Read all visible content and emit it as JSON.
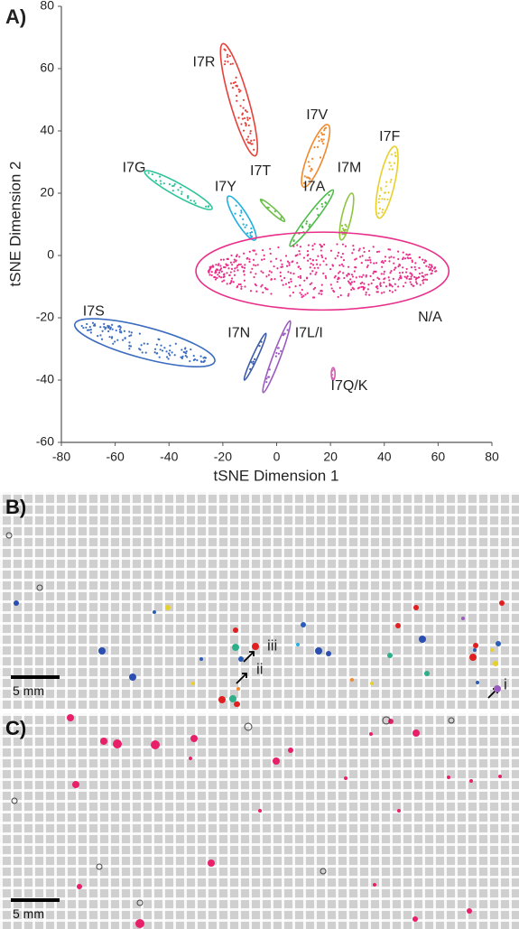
{
  "panel_a": {
    "label": "A)"
  },
  "chart_data": {
    "type": "scatter",
    "x_label": "tSNE Dimension 1",
    "y_label": "tSNE Dimension 2",
    "xlim": [
      -80,
      80
    ],
    "ylim": [
      -60,
      80
    ],
    "xticks": [
      -80,
      -60,
      -40,
      -20,
      0,
      20,
      40,
      60,
      80
    ],
    "yticks": [
      -60,
      -40,
      -20,
      0,
      20,
      40,
      60,
      80
    ],
    "clusters": [
      {
        "name": "I7R",
        "color": "#e8403a",
        "x": [
          -20,
          -8
        ],
        "y": [
          68,
          32
        ],
        "half_width": 3,
        "label_xy": [
          -27,
          62
        ]
      },
      {
        "name": "I7V",
        "color": "#f08a2e",
        "x": [
          19,
          10
        ],
        "y": [
          42,
          22
        ],
        "half_width": 2.5,
        "label_xy": [
          15,
          45
        ]
      },
      {
        "name": "I7F",
        "color": "#e8d02a",
        "x": [
          44,
          38
        ],
        "y": [
          35,
          12
        ],
        "half_width": 2.5,
        "label_xy": [
          42,
          38
        ]
      },
      {
        "name": "I7G",
        "color": "#2ec49a",
        "x": [
          -49,
          -24
        ],
        "y": [
          27,
          15
        ],
        "half_width": 2,
        "label_xy": [
          -53,
          28
        ]
      },
      {
        "name": "I7Y",
        "color": "#1fb0e0",
        "x": [
          -18,
          -8
        ],
        "y": [
          19,
          5
        ],
        "half_width": 2,
        "label_xy": [
          -19,
          22
        ]
      },
      {
        "name": "I7T",
        "color": "#6cc04a",
        "x": [
          -6,
          3
        ],
        "y": [
          18,
          11
        ],
        "half_width": 0.8,
        "label_xy": [
          -6,
          27
        ]
      },
      {
        "name": "I7A",
        "color": "#4cbb48",
        "x": [
          21,
          5
        ],
        "y": [
          21,
          3
        ],
        "half_width": 1.5,
        "label_xy": [
          14,
          22
        ]
      },
      {
        "name": "I7M",
        "color": "#8cc63e",
        "x": [
          28,
          24
        ],
        "y": [
          20,
          5
        ],
        "half_width": 1.5,
        "label_xy": [
          27,
          28
        ]
      },
      {
        "name": "N/A",
        "color": "#e8308a",
        "x": [
          -30,
          64
        ],
        "y": [
          -5,
          -5
        ],
        "half_width": 12.5,
        "label_xy": [
          57,
          -20
        ]
      },
      {
        "name": "I7S",
        "color": "#3c6cc0",
        "x": [
          -75,
          -23
        ],
        "y": [
          -22,
          -34
        ],
        "half_width": 5,
        "label_xy": [
          -68,
          -18
        ]
      },
      {
        "name": "I7N",
        "color": "#3c5ca8",
        "x": [
          -4,
          -12
        ],
        "y": [
          -25,
          -40
        ],
        "half_width": 0.8,
        "label_xy": [
          -14,
          -25
        ]
      },
      {
        "name": "I7L/I",
        "color": "#9a5cc0",
        "x": [
          5,
          -5
        ],
        "y": [
          -21,
          -44
        ],
        "half_width": 1.2,
        "label_xy": [
          12,
          -25
        ]
      },
      {
        "name": "I7Q/K",
        "color": "#d060b0",
        "x": [
          21,
          21
        ],
        "y": [
          -36,
          -40
        ],
        "half_width": 0.6,
        "label_xy": [
          27,
          -42
        ]
      }
    ]
  },
  "panel_b": {
    "label": "B)",
    "scale_bar": "5 mm",
    "arrows": [
      "i",
      "ii",
      "iii"
    ]
  },
  "panel_c": {
    "label": "C)",
    "scale_bar": "5 mm"
  }
}
